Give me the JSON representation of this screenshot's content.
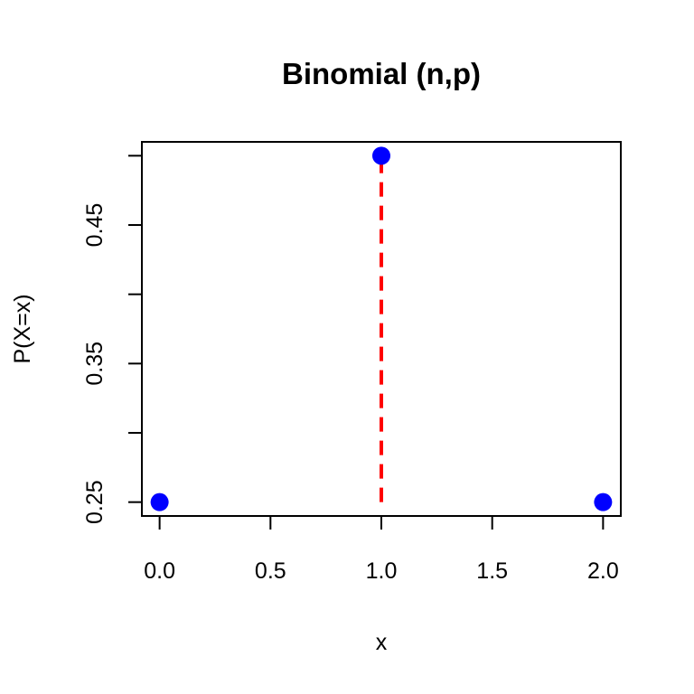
{
  "chart_data": {
    "type": "scatter",
    "title": "Binomial (n,p)",
    "xlabel": "x",
    "ylabel": "P(X=x)",
    "xlim": [
      -0.08,
      2.08
    ],
    "ylim": [
      0.24,
      0.51
    ],
    "x_ticks": [
      "0.0",
      "0.5",
      "1.0",
      "1.5",
      "2.0"
    ],
    "y_ticks": [
      "0.25",
      "0.30",
      "0.35",
      "0.40",
      "0.45",
      "0.50"
    ],
    "y_tick_labels": [
      "0.25",
      "",
      "0.35",
      "",
      "0.45",
      ""
    ],
    "grid": false,
    "series": [
      {
        "x": [
          0,
          1,
          2
        ],
        "y": [
          0.25,
          0.5,
          0.25
        ],
        "color": "#0000ff",
        "marker": "filled-circle"
      }
    ],
    "annotations": [
      {
        "type": "vertical-dashed-line",
        "x": 1,
        "y_from": 0.25,
        "y_to": 0.5,
        "color": "#ff0000"
      }
    ]
  }
}
